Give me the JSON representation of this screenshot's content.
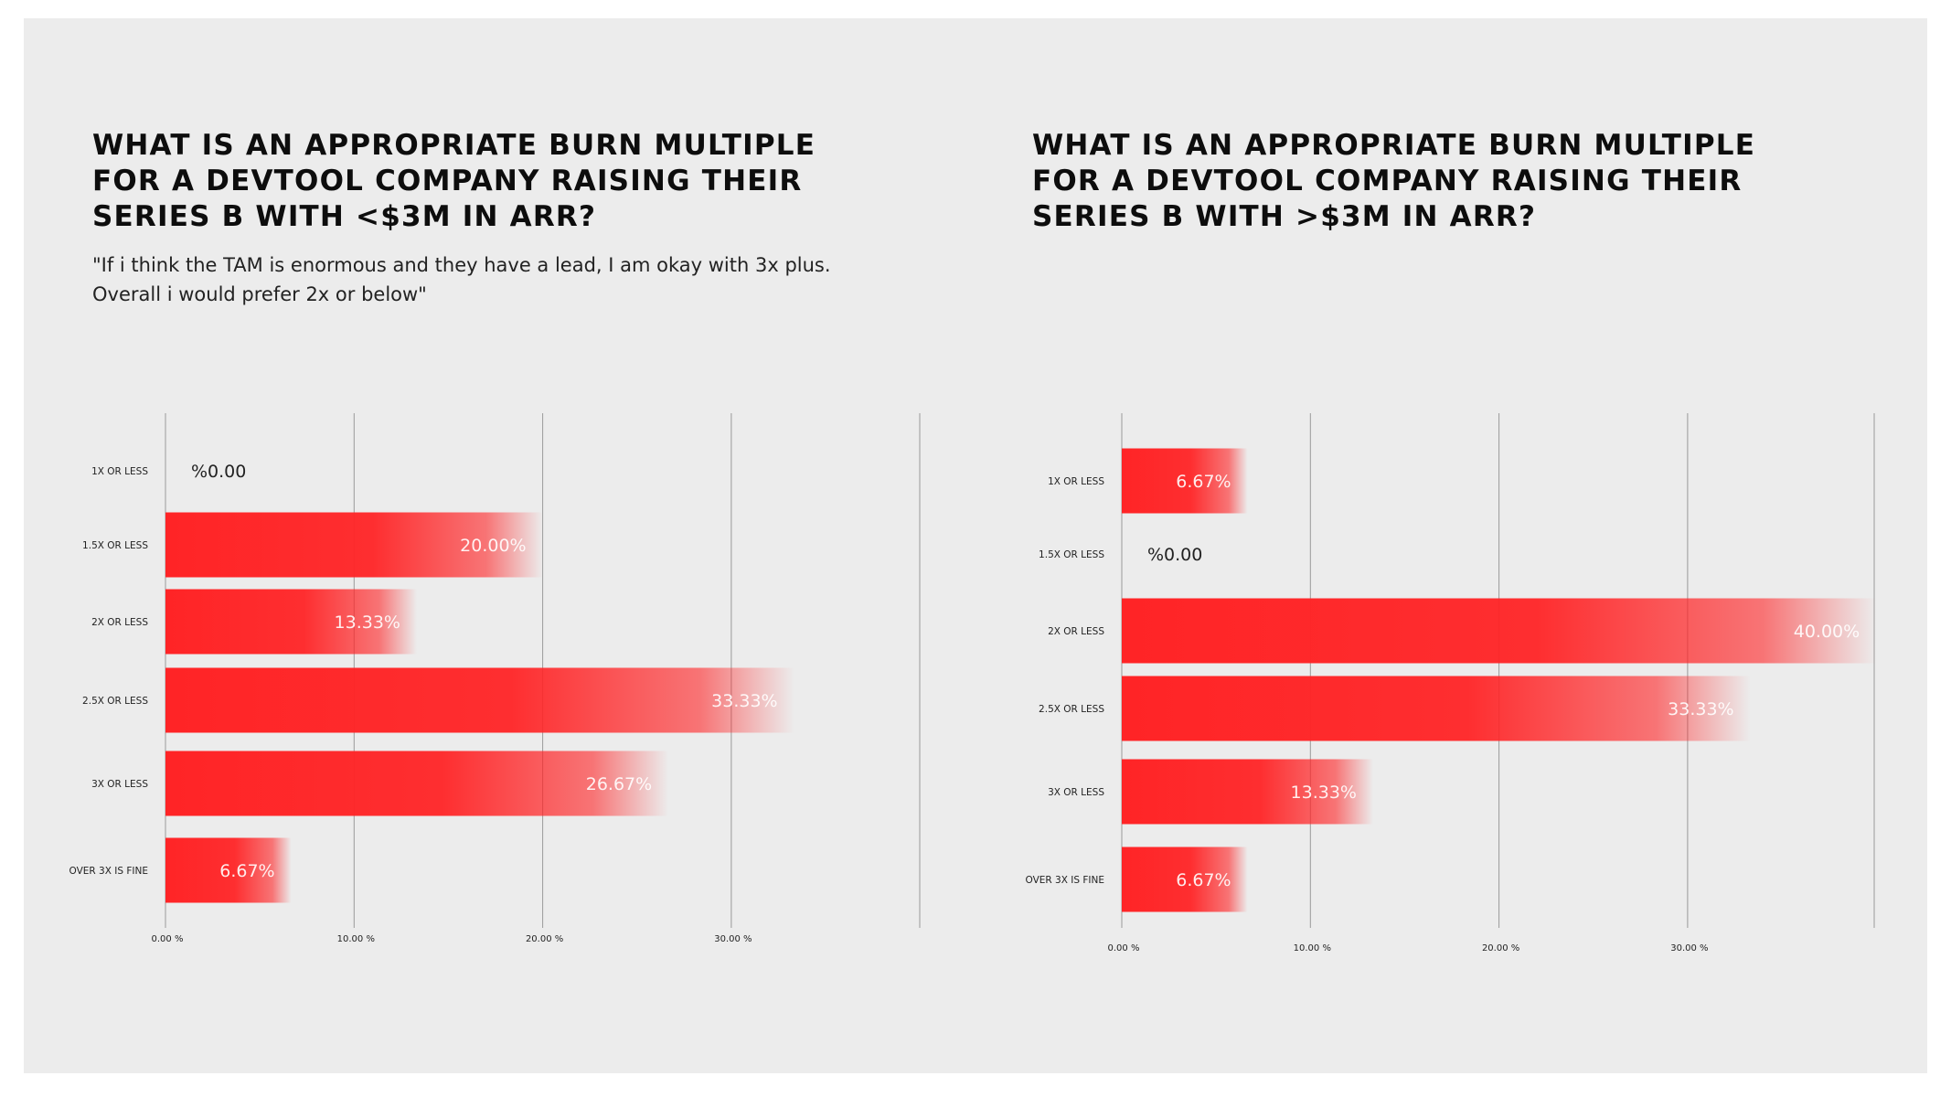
{
  "left": {
    "title_lines": [
      "WHAT IS AN APPROPRIATE BURN MULTIPLE",
      "FOR A DEVTOOL COMPANY RAISING THEIR",
      "SERIES B WITH <$3M IN ARR?"
    ],
    "quote": "\"If i think the TAM is enormous and they have a lead, I am okay with 3x plus. Overall i would prefer 2x or below\""
  },
  "right": {
    "title_lines": [
      "WHAT IS AN APPROPRIATE BURN MULTIPLE",
      "FOR A DEVTOOL COMPANY RAISING THEIR",
      "SERIES B WITH >$3M IN ARR?"
    ]
  },
  "colors": {
    "bar": "#ff2426",
    "background": "#ececec",
    "grid": "#9a9a9a"
  },
  "chart_data": [
    {
      "type": "bar",
      "orientation": "horizontal",
      "categories": [
        "1X OR LESS",
        "1.5X OR LESS",
        "2X OR LESS",
        "2.5X OR LESS",
        "3X OR LESS",
        "OVER 3X IS FINE"
      ],
      "values": [
        0.0,
        20.0,
        13.33,
        33.33,
        26.67,
        6.67
      ],
      "value_labels": [
        "%0.00",
        "20.00%",
        "13.33%",
        "33.33%",
        "26.67%",
        "6.67%"
      ],
      "xticks": [
        0,
        10,
        20,
        30
      ],
      "xtick_labels": [
        "0.00 %",
        "10.00 %",
        "20.00 %",
        "30.00 %"
      ],
      "xlim": [
        0,
        40
      ],
      "grid": true
    },
    {
      "type": "bar",
      "orientation": "horizontal",
      "categories": [
        "1X OR LESS",
        "1.5X OR LESS",
        "2X OR LESS",
        "2.5X OR LESS",
        "3X OR LESS",
        "OVER 3X IS FINE"
      ],
      "values": [
        6.67,
        0.0,
        40.0,
        33.33,
        13.33,
        6.67
      ],
      "value_labels": [
        "6.67%",
        "%0.00",
        "40.00%",
        "33.33%",
        "13.33%",
        "6.67%"
      ],
      "xticks": [
        0,
        10,
        20,
        30
      ],
      "xtick_labels": [
        "0.00 %",
        "10.00 %",
        "20.00 %",
        "30.00 %"
      ],
      "xlim": [
        0,
        40
      ],
      "grid": true
    }
  ]
}
